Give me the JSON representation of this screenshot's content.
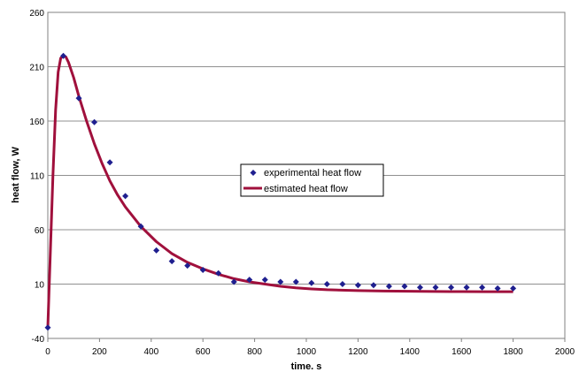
{
  "chart_data": {
    "type": "scatter",
    "xlabel": "time. s",
    "ylabel": "heat flow, W",
    "xlim": [
      0,
      2000
    ],
    "ylim": [
      -40,
      260
    ],
    "xticks": [
      0,
      200,
      400,
      600,
      800,
      1000,
      1200,
      1400,
      1600,
      1800,
      2000
    ],
    "yticks": [
      -40,
      10,
      60,
      110,
      160,
      210,
      260
    ],
    "grid": "horizontal",
    "legend_position": "center-right",
    "series": [
      {
        "name": "experimental heat flow",
        "kind": "markers",
        "marker": "diamond",
        "color": "#1f1f8f",
        "x": [
          0,
          60,
          120,
          180,
          240,
          300,
          360,
          420,
          480,
          540,
          600,
          660,
          720,
          780,
          840,
          900,
          960,
          1020,
          1080,
          1140,
          1200,
          1260,
          1320,
          1380,
          1440,
          1500,
          1560,
          1620,
          1680,
          1740,
          1800
        ],
        "y": [
          -30,
          220,
          181,
          159,
          122,
          91,
          63,
          41,
          31,
          27,
          23,
          20,
          12,
          14,
          14,
          12,
          12,
          11,
          10,
          10,
          9,
          9,
          8,
          8,
          7,
          7,
          7,
          7,
          7,
          6,
          6
        ]
      },
      {
        "name": "estimated heat flow",
        "kind": "line",
        "color": "#a0103c",
        "x": [
          0,
          10,
          20,
          30,
          40,
          50,
          60,
          70,
          80,
          100,
          120,
          150,
          180,
          210,
          240,
          270,
          300,
          360,
          420,
          480,
          540,
          600,
          660,
          720,
          780,
          840,
          900,
          960,
          1020,
          1080,
          1200,
          1300,
          1400,
          1500,
          1600,
          1700,
          1800
        ],
        "y": [
          -30,
          40,
          110,
          170,
          205,
          218,
          220,
          219,
          214,
          200,
          183,
          160,
          139,
          121,
          105,
          92,
          81,
          63,
          49,
          38,
          30,
          24,
          19,
          15,
          12,
          10,
          8,
          6.5,
          5.5,
          4.8,
          4,
          3.6,
          3.4,
          3.2,
          3.1,
          3,
          3
        ]
      }
    ]
  }
}
